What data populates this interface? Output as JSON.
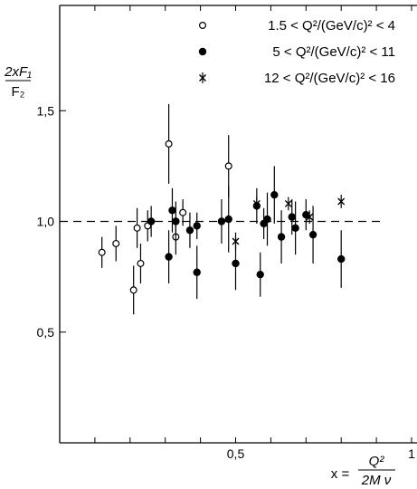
{
  "chart_data": {
    "type": "scatter",
    "title": "",
    "xlim": [
      0,
      1
    ],
    "ylim": [
      0,
      2
    ],
    "xticks": [
      {
        "value": 0.1
      },
      {
        "value": 0.2
      },
      {
        "value": 0.3
      },
      {
        "value": 0.4
      },
      {
        "value": 0.5,
        "label": "0,5"
      },
      {
        "value": 0.6
      },
      {
        "value": 0.7
      },
      {
        "value": 0.8
      },
      {
        "value": 0.9
      },
      {
        "value": 1.0,
        "label": "1"
      }
    ],
    "yticks": [
      {
        "value": 0.5,
        "label": "0,5"
      },
      {
        "value": 1.0,
        "label": "1,0"
      },
      {
        "value": 1.5,
        "label": "1,5"
      }
    ],
    "reference_line": {
      "y": 1.0,
      "style": "dashed"
    },
    "ylabel": {
      "numerator": "2xF₁",
      "denominator": "F₂"
    },
    "xlabel": {
      "prefix": "x =",
      "numerator": "Q²",
      "denominator": "2M ν"
    },
    "legend_position": "top-right",
    "series": [
      {
        "name": "1.5 < Q²/(GeV/c)² < 4",
        "marker": "open-circle",
        "points": [
          {
            "x": 0.12,
            "y": 0.86,
            "err": 0.07
          },
          {
            "x": 0.16,
            "y": 0.9,
            "err": 0.08
          },
          {
            "x": 0.21,
            "y": 0.69,
            "err": 0.11
          },
          {
            "x": 0.22,
            "y": 0.97,
            "err": 0.09
          },
          {
            "x": 0.23,
            "y": 0.81,
            "err": 0.09
          },
          {
            "x": 0.25,
            "y": 0.98,
            "err": 0.07
          },
          {
            "x": 0.31,
            "y": 1.35,
            "err": 0.18
          },
          {
            "x": 0.33,
            "y": 0.93,
            "err": 0.08
          },
          {
            "x": 0.35,
            "y": 1.04,
            "err": 0.06
          },
          {
            "x": 0.48,
            "y": 1.25,
            "err": 0.14
          }
        ]
      },
      {
        "name": "5 < Q²/(GeV/c)² < 11",
        "marker": "filled-circle",
        "points": [
          {
            "x": 0.26,
            "y": 1.0,
            "err": 0.07
          },
          {
            "x": 0.31,
            "y": 0.84,
            "err": 0.12
          },
          {
            "x": 0.32,
            "y": 1.05,
            "err": 0.1
          },
          {
            "x": 0.33,
            "y": 1.0,
            "err": 0.09
          },
          {
            "x": 0.37,
            "y": 0.96,
            "err": 0.08
          },
          {
            "x": 0.39,
            "y": 0.98,
            "err": 0.06
          },
          {
            "x": 0.39,
            "y": 0.77,
            "err": 0.12
          },
          {
            "x": 0.46,
            "y": 1.0,
            "err": 0.1
          },
          {
            "x": 0.48,
            "y": 1.01,
            "err": 0.15
          },
          {
            "x": 0.5,
            "y": 0.81,
            "err": 0.12
          },
          {
            "x": 0.56,
            "y": 1.07,
            "err": 0.08
          },
          {
            "x": 0.57,
            "y": 0.76,
            "err": 0.1
          },
          {
            "x": 0.58,
            "y": 0.99,
            "err": 0.07
          },
          {
            "x": 0.59,
            "y": 1.01,
            "err": 0.12
          },
          {
            "x": 0.61,
            "y": 1.12,
            "err": 0.13
          },
          {
            "x": 0.63,
            "y": 0.93,
            "err": 0.12
          },
          {
            "x": 0.66,
            "y": 1.02,
            "err": 0.08
          },
          {
            "x": 0.67,
            "y": 0.97,
            "err": 0.12
          },
          {
            "x": 0.7,
            "y": 1.03,
            "err": 0.07
          },
          {
            "x": 0.72,
            "y": 0.94,
            "err": 0.13
          },
          {
            "x": 0.8,
            "y": 0.83,
            "err": 0.13
          }
        ]
      },
      {
        "name": "12 < Q²/(GeV/c)² < 16",
        "marker": "cross",
        "points": [
          {
            "x": 0.5,
            "y": 0.91,
            "err": 0.04
          },
          {
            "x": 0.56,
            "y": 1.08,
            "err": 0.03
          },
          {
            "x": 0.65,
            "y": 1.08,
            "err": 0.03
          },
          {
            "x": 0.71,
            "y": 1.02,
            "err": 0.03
          },
          {
            "x": 0.8,
            "y": 1.09,
            "err": 0.03
          }
        ]
      }
    ]
  }
}
